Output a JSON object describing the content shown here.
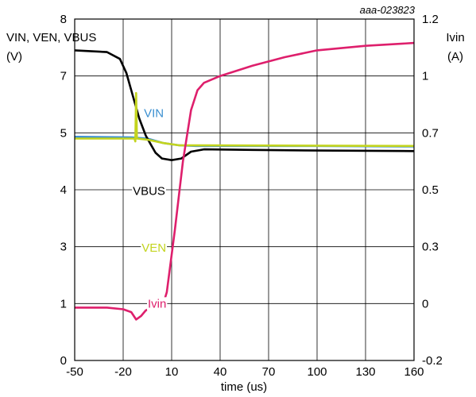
{
  "chart_data": {
    "type": "line",
    "doc_id": "aaa-023823",
    "xlabel": "time (us)",
    "ylabel_left": [
      "VIN, VEN, VBUS",
      "(V)"
    ],
    "ylabel_right": [
      "Ivin",
      "(A)"
    ],
    "xlim": [
      -50,
      160
    ],
    "x_ticks": [
      -50,
      -20,
      10,
      40,
      70,
      100,
      130,
      160
    ],
    "y_left_ticks": [
      {
        "label": "0",
        "pos": 0
      },
      {
        "label": "1",
        "pos": 1
      },
      {
        "label": "3",
        "pos": 2
      },
      {
        "label": "4",
        "pos": 3
      },
      {
        "label": "5",
        "pos": 4
      },
      {
        "label": "7",
        "pos": 5
      },
      {
        "label": "8",
        "pos": 6
      }
    ],
    "y_right_ticks": [
      {
        "label": "-0.2",
        "pos": 0
      },
      {
        "label": "0",
        "pos": 1
      },
      {
        "label": "0.3",
        "pos": 2
      },
      {
        "label": "0.5",
        "pos": 3
      },
      {
        "label": "0.7",
        "pos": 4
      },
      {
        "label": "1",
        "pos": 5
      },
      {
        "label": "1.2",
        "pos": 6
      }
    ],
    "grid": true,
    "series": [
      {
        "name": "VIN",
        "color": "#3a8fd0",
        "label_at": {
          "x": -1,
          "y": 4.35
        },
        "points": [
          [
            -50,
            3.93
          ],
          [
            -15,
            3.92
          ],
          [
            -5,
            3.9
          ],
          [
            5,
            3.82
          ],
          [
            15,
            3.78
          ],
          [
            25,
            3.77
          ],
          [
            100,
            3.77
          ],
          [
            160,
            3.76
          ]
        ]
      },
      {
        "name": "VBUS",
        "color": "#000000",
        "label_at": {
          "x": -4,
          "y": 2.98
        },
        "points": [
          [
            -50,
            5.45
          ],
          [
            -30,
            5.42
          ],
          [
            -22,
            5.3
          ],
          [
            -18,
            5.05
          ],
          [
            -14,
            4.65
          ],
          [
            -10,
            4.25
          ],
          [
            -6,
            3.95
          ],
          [
            -3,
            3.8
          ],
          [
            0,
            3.65
          ],
          [
            4,
            3.55
          ],
          [
            10,
            3.52
          ],
          [
            16,
            3.55
          ],
          [
            22,
            3.67
          ],
          [
            30,
            3.71
          ],
          [
            60,
            3.7
          ],
          [
            100,
            3.69
          ],
          [
            160,
            3.68
          ]
        ]
      },
      {
        "name": "VEN",
        "color": "#c3d41e",
        "label_at": {
          "x": -1,
          "y": 1.98
        },
        "points": [
          [
            -50,
            3.9
          ],
          [
            -20,
            3.9
          ],
          [
            -13,
            3.9
          ],
          [
            -12.5,
            3.85
          ],
          [
            -12,
            4.7
          ],
          [
            -11.5,
            3.9
          ],
          [
            -5,
            3.88
          ],
          [
            5,
            3.82
          ],
          [
            15,
            3.78
          ],
          [
            30,
            3.78
          ],
          [
            160,
            3.77
          ]
        ]
      },
      {
        "name": "Ivin",
        "color": "#de1f6c",
        "label_at": {
          "x": 1,
          "y": 1.0
        },
        "points": [
          [
            -50,
            0.93
          ],
          [
            -30,
            0.93
          ],
          [
            -20,
            0.9
          ],
          [
            -15,
            0.85
          ],
          [
            -12,
            0.72
          ],
          [
            -9,
            0.78
          ],
          [
            -6,
            0.88
          ],
          [
            -3,
            0.92
          ],
          [
            4,
            0.92
          ],
          [
            7,
            1.2
          ],
          [
            12,
            2.3
          ],
          [
            17,
            3.5
          ],
          [
            22,
            4.4
          ],
          [
            26,
            4.75
          ],
          [
            30,
            4.88
          ],
          [
            40,
            5.0
          ],
          [
            60,
            5.18
          ],
          [
            80,
            5.33
          ],
          [
            100,
            5.45
          ],
          [
            130,
            5.53
          ],
          [
            160,
            5.58
          ]
        ]
      }
    ]
  }
}
